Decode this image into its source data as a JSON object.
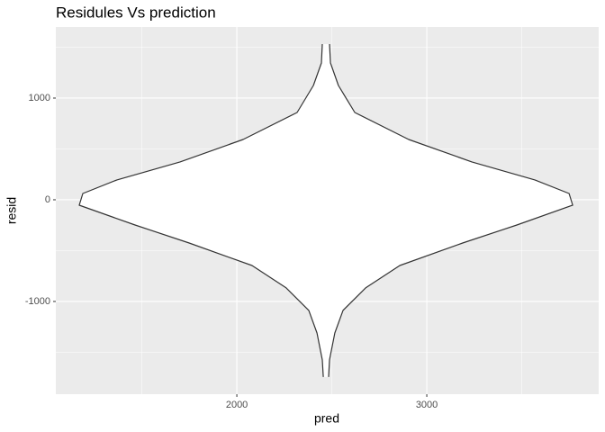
{
  "chart_data": {
    "type": "violin",
    "title": "Residules Vs prediction",
    "x_label": "pred",
    "y_label": "resid",
    "center_x": 2469,
    "y": [
      1531,
      1345,
      1124,
      858,
      593,
      372,
      195,
      62,
      -53,
      -248,
      -425,
      -646,
      -867,
      -1088,
      -1310,
      -1575,
      -1743
    ],
    "half_width": [
      19,
      24,
      66,
      152,
      436,
      768,
      1100,
      1280,
      1299,
      1005,
      720,
      389,
      209,
      90,
      47,
      19,
      14
    ],
    "fill": "#ffffff",
    "outline": "#333333",
    "xlim": [
      1047,
      3905
    ],
    "ylim": [
      -1912,
      1699
    ],
    "xticks": [
      2000,
      3000
    ],
    "yticks": [
      -1000,
      0,
      1000
    ],
    "xminor_ticks": [
      1500,
      2500,
      3500
    ],
    "yminor_ticks": [
      -1500,
      -500,
      500,
      1500
    ],
    "grid": true
  }
}
